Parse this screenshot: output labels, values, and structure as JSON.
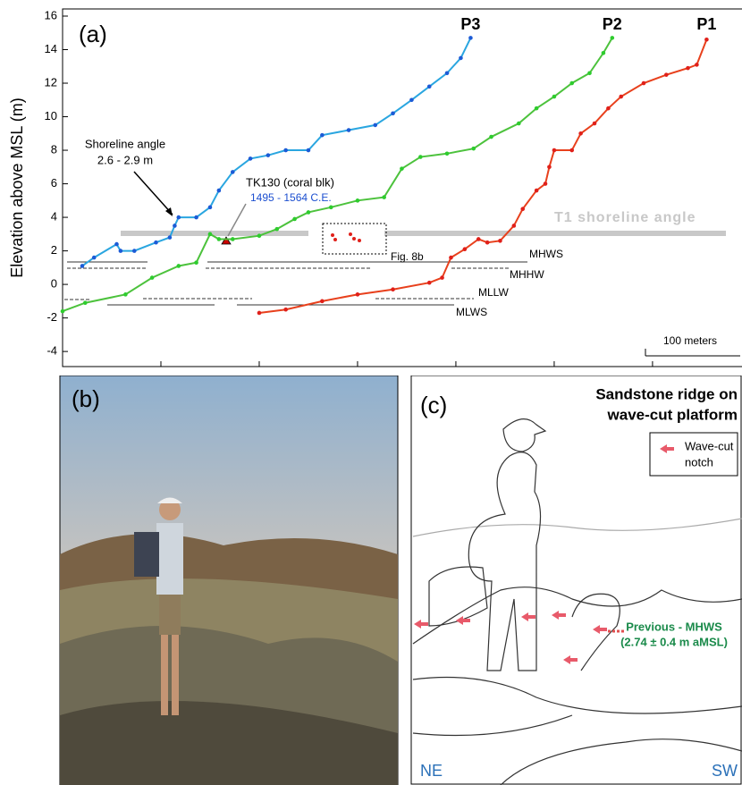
{
  "chart_data": {
    "type": "line",
    "panel_label": "(a)",
    "y_label": "Elevation above MSL (m)",
    "xlim": [
      0,
      691
    ],
    "ylim": [
      -4.9,
      16
    ],
    "yticks": [
      -4,
      -2,
      0,
      2,
      4,
      6,
      8,
      10,
      12,
      14,
      16
    ],
    "xticks": [
      100,
      200,
      300,
      400,
      500,
      600
    ],
    "series": [
      {
        "name": "P3",
        "color": "#2aa6e0",
        "dot_color": "#1c5bd6",
        "x": [
          20,
          32,
          55,
          59,
          73,
          95,
          109,
          114,
          118,
          136,
          150,
          159,
          173,
          191,
          209,
          227,
          250,
          264,
          291,
          318,
          336,
          355,
          373,
          391,
          405,
          415
        ],
        "values": [
          1.1,
          1.6,
          2.4,
          2.0,
          2.0,
          2.5,
          2.8,
          3.5,
          4.0,
          4.0,
          4.6,
          5.6,
          6.7,
          7.5,
          7.7,
          8.0,
          8.0,
          8.9,
          9.2,
          9.5,
          10.2,
          11.0,
          11.8,
          12.6,
          13.5,
          14.7
        ]
      },
      {
        "name": "P2",
        "color": "#4cc23c",
        "dot_color": "#2ecc2e",
        "x": [
          0,
          23,
          64,
          91,
          118,
          136,
          150,
          159,
          173,
          200,
          218,
          236,
          250,
          273,
          300,
          327,
          345,
          364,
          391,
          418,
          436,
          464,
          482,
          500,
          518,
          536,
          550,
          559
        ],
        "values": [
          -1.6,
          -1.1,
          -0.6,
          0.4,
          1.1,
          1.3,
          3.0,
          2.7,
          2.7,
          2.9,
          3.3,
          3.9,
          4.3,
          4.6,
          5.0,
          5.2,
          6.9,
          7.6,
          7.8,
          8.1,
          8.8,
          9.6,
          10.5,
          11.2,
          12.0,
          12.6,
          13.8,
          14.7
        ]
      },
      {
        "name": "P1",
        "color": "#e8401c",
        "dot_color": "#e0201a",
        "x": [
          200,
          227,
          264,
          300,
          336,
          373,
          386,
          395,
          409,
          423,
          432,
          445,
          459,
          468,
          482,
          491,
          495,
          500,
          518,
          527,
          541,
          555,
          568,
          591,
          614,
          636,
          645,
          655
        ],
        "values": [
          -1.7,
          -1.5,
          -1.0,
          -0.6,
          -0.3,
          0.1,
          0.4,
          1.6,
          2.1,
          2.7,
          2.5,
          2.6,
          3.5,
          4.5,
          5.6,
          6.0,
          7.0,
          8.0,
          8.0,
          9.0,
          9.6,
          10.5,
          11.2,
          12.0,
          12.5,
          12.9,
          13.1,
          14.6
        ]
      }
    ],
    "annotations": [
      "Shoreline angle",
      "2.6 - 2.9 m",
      "TK130 (coral blk)",
      "1495 - 1564 C.E.",
      "Fig. 8b",
      "T1 shoreline angle",
      "MHWS",
      "MHHW",
      "MLLW",
      "MLWS",
      "100 meters"
    ]
  },
  "panel_b": {
    "label": "(b)"
  },
  "panel_c": {
    "label": "(c)",
    "title": [
      "Sandstone ridge on",
      "wave-cut platform"
    ],
    "legend": [
      "Wave-cut",
      "notch"
    ],
    "note": [
      "Previous - MHWS",
      "(2.74 ± 0.4 m aMSL)"
    ],
    "left": "NE",
    "right": "SW"
  }
}
